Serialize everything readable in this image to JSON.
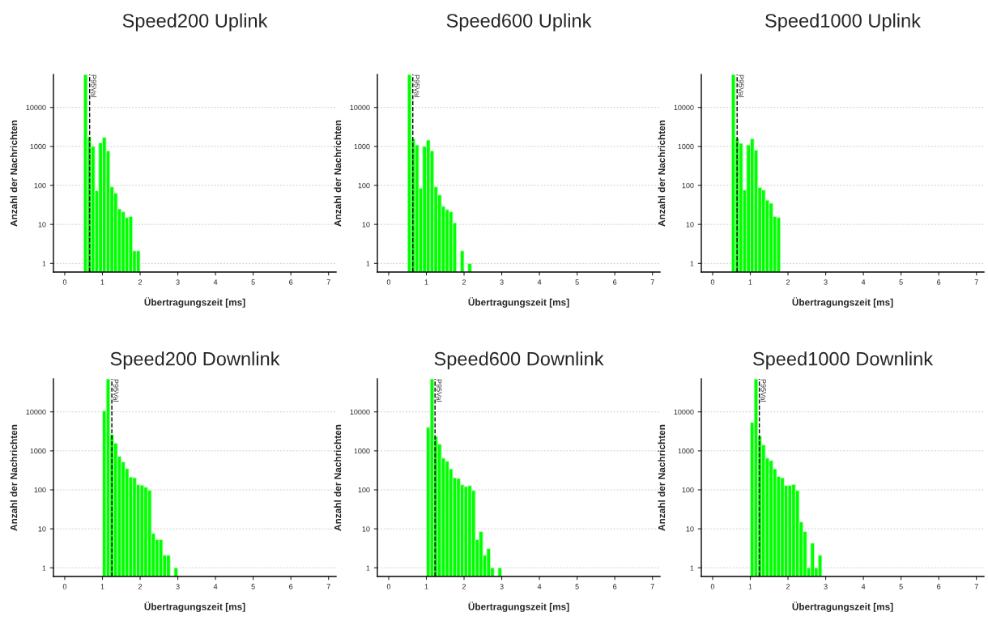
{
  "chart_data": [
    {
      "type": "histogram",
      "title": "Speed200 Uplink",
      "xlabel": "Übertragungszeit [ms]",
      "ylabel": "Anzahl der Nachrichten",
      "color": "#00ff00",
      "log": true,
      "grid": "y",
      "xlim": [
        -0.3,
        7.2
      ],
      "xticks": [
        0,
        1,
        2,
        3,
        4,
        5,
        6,
        7
      ],
      "ylim": [
        0.6,
        70000
      ],
      "yticks": [
        1,
        10,
        100,
        1000,
        10000
      ],
      "bins": [
        0.5,
        0.6,
        0.7,
        0.8,
        0.9,
        1.0,
        1.1,
        1.2,
        1.3,
        1.4,
        1.5,
        1.6,
        1.7,
        1.8,
        1.9,
        2.0
      ],
      "values": [
        70000,
        1760,
        1000,
        73,
        1240,
        1700,
        770,
        92,
        63,
        25,
        21,
        15,
        16,
        2.1,
        2.1
      ],
      "ref_lines": [
        {
          "axis": "x",
          "value": 0.66,
          "label": "P95Val",
          "color": "#000000",
          "line_style": "dashed"
        }
      ]
    },
    {
      "type": "histogram",
      "title": "Speed600 Uplink",
      "xlabel": "Übertragungszeit [ms]",
      "ylabel": "Anzahl der Nachrichten",
      "color": "#00ff00",
      "log": true,
      "grid": "y",
      "xlim": [
        -0.3,
        7.2
      ],
      "xticks": [
        0,
        1,
        2,
        3,
        4,
        5,
        6,
        7
      ],
      "ylim": [
        0.6,
        70000
      ],
      "yticks": [
        1,
        10,
        100,
        1000,
        10000
      ],
      "bins": [
        0.5,
        0.6,
        0.7,
        0.8,
        0.9,
        1.0,
        1.1,
        1.2,
        1.3,
        1.4,
        1.5,
        1.6,
        1.7,
        1.8,
        1.9,
        2.0,
        2.1,
        2.2
      ],
      "values": [
        70000,
        1580,
        1090,
        85,
        1000,
        1450,
        770,
        92,
        57,
        29,
        24,
        21,
        11,
        null,
        2.1,
        null,
        1
      ],
      "ref_lines": [
        {
          "axis": "x",
          "value": 0.64,
          "label": "P95Val",
          "color": "#000000",
          "line_style": "dashed"
        }
      ]
    },
    {
      "type": "histogram",
      "title": "Speed1000 Uplink",
      "xlabel": "Übertragungszeit [ms]",
      "ylabel": "Anzahl der Nachrichten",
      "color": "#00ff00",
      "log": true,
      "grid": "y",
      "xlim": [
        -0.3,
        7.2
      ],
      "xticks": [
        0,
        1,
        2,
        3,
        4,
        5,
        6,
        7
      ],
      "ylim": [
        0.6,
        70000
      ],
      "yticks": [
        1,
        10,
        100,
        1000,
        10000
      ],
      "bins": [
        0.5,
        0.6,
        0.7,
        0.8,
        0.9,
        1.0,
        1.1,
        1.2,
        1.3,
        1.4,
        1.5,
        1.6,
        1.7,
        1.8
      ],
      "values": [
        70000,
        1620,
        1200,
        76,
        1090,
        1580,
        810,
        89,
        76,
        42,
        35,
        16,
        15
      ],
      "ref_lines": [
        {
          "axis": "x",
          "value": 0.65,
          "label": "P95Val",
          "color": "#000000",
          "line_style": "dashed"
        }
      ]
    },
    {
      "type": "histogram",
      "title": "Speed200 Downlink",
      "xlabel": "Übertragungszeit [ms]",
      "ylabel": "Anzahl der Nachrichten",
      "color": "#00ff00",
      "log": true,
      "grid": "y",
      "xlim": [
        -0.3,
        7.2
      ],
      "xticks": [
        0,
        1,
        2,
        3,
        4,
        5,
        6,
        7
      ],
      "ylim": [
        0.6,
        70000
      ],
      "yticks": [
        1,
        10,
        100,
        1000,
        10000
      ],
      "bins": [
        1.0,
        1.1,
        1.2,
        1.3,
        1.4,
        1.5,
        1.6,
        1.7,
        1.8,
        1.9,
        2.0,
        2.1,
        2.2,
        2.3,
        2.4,
        2.5,
        2.6,
        2.7,
        2.8,
        2.9,
        3.0
      ],
      "values": [
        10700,
        70000,
        2600,
        1580,
        720,
        520,
        350,
        213,
        205,
        136,
        132,
        117,
        98,
        7.6,
        5.3,
        5.3,
        2.1,
        2.1,
        null,
        1
      ],
      "ref_lines": [
        {
          "axis": "x",
          "value": 1.25,
          "label": "P95Val",
          "color": "#000000",
          "line_style": "dashed"
        }
      ]
    },
    {
      "type": "histogram",
      "title": "Speed600 Downlink",
      "xlabel": "Übertragungszeit [ms]",
      "ylabel": "Anzahl der Nachrichten",
      "color": "#00ff00",
      "log": true,
      "grid": "y",
      "xlim": [
        -0.3,
        7.2
      ],
      "xticks": [
        0,
        1,
        2,
        3,
        4,
        5,
        6,
        7
      ],
      "ylim": [
        0.6,
        70000
      ],
      "yticks": [
        1,
        10,
        100,
        1000,
        10000
      ],
      "bins": [
        1.0,
        1.1,
        1.2,
        1.3,
        1.4,
        1.5,
        1.6,
        1.7,
        1.8,
        1.9,
        2.0,
        2.1,
        2.2,
        2.3,
        2.4,
        2.5,
        2.6,
        2.7,
        2.8,
        2.9,
        3.0
      ],
      "values": [
        4000,
        70000,
        2360,
        1490,
        650,
        540,
        345,
        204,
        196,
        135,
        122,
        128,
        96,
        5.3,
        8.5,
        2.1,
        3.1,
        1,
        null,
        1
      ],
      "ref_lines": [
        {
          "axis": "x",
          "value": 1.23,
          "label": "P95Val",
          "color": "#000000",
          "line_style": "dashed"
        }
      ]
    },
    {
      "type": "histogram",
      "title": "Speed1000 Downlink",
      "xlabel": "Übertragungszeit [ms]",
      "ylabel": "Anzahl der Nachrichten",
      "color": "#00ff00",
      "log": true,
      "grid": "y",
      "xlim": [
        -0.3,
        7.2
      ],
      "xticks": [
        0,
        1,
        2,
        3,
        4,
        5,
        6,
        7
      ],
      "ylim": [
        0.6,
        70000
      ],
      "yticks": [
        1,
        10,
        100,
        1000,
        10000
      ],
      "bins": [
        1.0,
        1.1,
        1.2,
        1.3,
        1.4,
        1.5,
        1.6,
        1.7,
        1.8,
        1.9,
        2.0,
        2.1,
        2.2,
        2.3,
        2.4,
        2.5,
        2.6,
        2.7,
        2.8,
        2.9
      ],
      "values": [
        5350,
        70000,
        2400,
        1420,
        650,
        565,
        345,
        220,
        204,
        130,
        130,
        138,
        96,
        15,
        8.5,
        1,
        4.3,
        1,
        2.1
      ],
      "ref_lines": [
        {
          "axis": "x",
          "value": 1.24,
          "label": "P95Val",
          "color": "#000000",
          "line_style": "dashed"
        }
      ]
    }
  ]
}
